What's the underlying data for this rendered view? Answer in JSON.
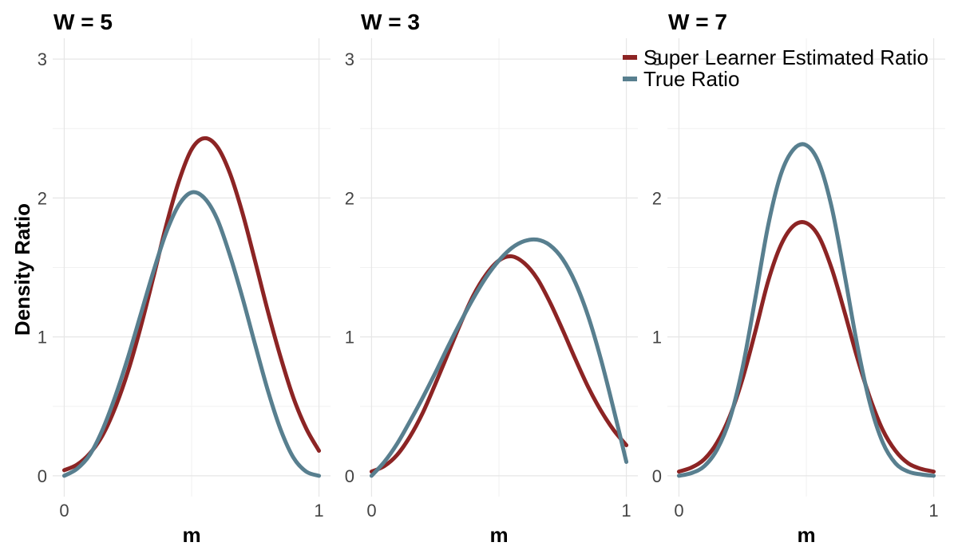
{
  "chart_data": {
    "type": "line",
    "ylabel": "Density Ratio",
    "xlabel": "m",
    "xlim": [
      0,
      1
    ],
    "ylim": [
      -0.15,
      3.15
    ],
    "xticks": [
      "0",
      "1"
    ],
    "yticks": [
      "0",
      "1",
      "2",
      "3"
    ],
    "grid": true,
    "legend_position": "top-right",
    "series_meta": [
      {
        "name": "Super Learner Estimated Ratio",
        "color": "#8c2424"
      },
      {
        "name": "True Ratio",
        "color": "#587f8f"
      }
    ],
    "panels": [
      {
        "title": "W = 5",
        "series": [
          {
            "name": "Super Learner Estimated Ratio",
            "x": [
              0.0,
              0.05,
              0.1,
              0.15,
              0.2,
              0.25,
              0.3,
              0.35,
              0.4,
              0.45,
              0.5,
              0.55,
              0.6,
              0.65,
              0.7,
              0.75,
              0.8,
              0.85,
              0.9,
              0.95,
              1.0
            ],
            "values": [
              0.04,
              0.08,
              0.16,
              0.29,
              0.49,
              0.75,
              1.07,
              1.43,
              1.8,
              2.12,
              2.35,
              2.43,
              2.37,
              2.18,
              1.89,
              1.54,
              1.18,
              0.85,
              0.56,
              0.34,
              0.18
            ]
          },
          {
            "name": "True Ratio",
            "x": [
              0.0,
              0.05,
              0.1,
              0.15,
              0.2,
              0.25,
              0.3,
              0.35,
              0.4,
              0.45,
              0.5,
              0.55,
              0.6,
              0.65,
              0.7,
              0.75,
              0.8,
              0.85,
              0.9,
              0.95,
              1.0
            ],
            "values": [
              0.0,
              0.05,
              0.15,
              0.33,
              0.57,
              0.85,
              1.16,
              1.47,
              1.75,
              1.95,
              2.04,
              2.0,
              1.85,
              1.59,
              1.28,
              0.94,
              0.61,
              0.33,
              0.13,
              0.03,
              0.0
            ]
          }
        ]
      },
      {
        "title": "W = 3",
        "series": [
          {
            "name": "Super Learner Estimated Ratio",
            "x": [
              0.0,
              0.05,
              0.1,
              0.15,
              0.2,
              0.25,
              0.3,
              0.35,
              0.4,
              0.45,
              0.5,
              0.55,
              0.6,
              0.65,
              0.7,
              0.75,
              0.8,
              0.85,
              0.9,
              0.95,
              1.0
            ],
            "values": [
              0.03,
              0.07,
              0.15,
              0.28,
              0.45,
              0.66,
              0.88,
              1.1,
              1.3,
              1.45,
              1.55,
              1.58,
              1.53,
              1.42,
              1.25,
              1.05,
              0.84,
              0.64,
              0.47,
              0.33,
              0.22
            ]
          },
          {
            "name": "True Ratio",
            "x": [
              0.0,
              0.05,
              0.1,
              0.15,
              0.2,
              0.25,
              0.3,
              0.35,
              0.4,
              0.45,
              0.5,
              0.55,
              0.6,
              0.65,
              0.7,
              0.75,
              0.8,
              0.85,
              0.9,
              0.95,
              1.0
            ],
            "values": [
              0.0,
              0.1,
              0.23,
              0.39,
              0.56,
              0.74,
              0.93,
              1.11,
              1.28,
              1.43,
              1.55,
              1.64,
              1.69,
              1.7,
              1.66,
              1.56,
              1.39,
              1.15,
              0.84,
              0.48,
              0.1
            ]
          }
        ]
      },
      {
        "title": "W = 7",
        "series": [
          {
            "name": "Super Learner Estimated Ratio",
            "x": [
              0.0,
              0.05,
              0.1,
              0.15,
              0.2,
              0.25,
              0.3,
              0.35,
              0.4,
              0.45,
              0.5,
              0.55,
              0.6,
              0.65,
              0.7,
              0.75,
              0.8,
              0.85,
              0.9,
              0.95,
              1.0
            ],
            "values": [
              0.03,
              0.06,
              0.12,
              0.24,
              0.43,
              0.7,
              1.04,
              1.4,
              1.66,
              1.8,
              1.82,
              1.72,
              1.49,
              1.18,
              0.85,
              0.56,
              0.33,
              0.18,
              0.09,
              0.05,
              0.03
            ]
          },
          {
            "name": "True Ratio",
            "x": [
              0.0,
              0.05,
              0.1,
              0.15,
              0.2,
              0.25,
              0.3,
              0.35,
              0.4,
              0.45,
              0.5,
              0.55,
              0.6,
              0.65,
              0.7,
              0.75,
              0.8,
              0.85,
              0.9,
              0.95,
              1.0
            ],
            "values": [
              0.0,
              0.02,
              0.07,
              0.19,
              0.41,
              0.78,
              1.28,
              1.8,
              2.17,
              2.35,
              2.38,
              2.25,
              1.93,
              1.45,
              0.94,
              0.52,
              0.24,
              0.09,
              0.03,
              0.01,
              0.0
            ]
          }
        ]
      }
    ]
  }
}
